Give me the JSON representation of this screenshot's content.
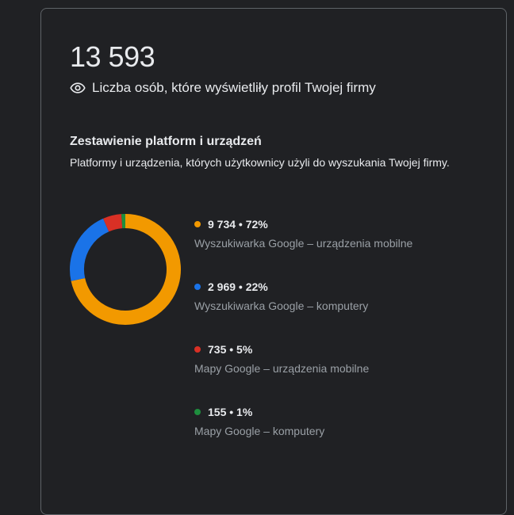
{
  "summary": {
    "total": "13 593",
    "metric_label": "Liczba osób, które wyświetliły profil Twojej firmy",
    "metric_icon": "eye-icon"
  },
  "breakdown": {
    "title": "Zestawienie platform i urządzeń",
    "subtitle": "Platformy i urządzenia, których użytkownicy użyli do wyszukania Twojej firmy."
  },
  "chart_data": {
    "type": "pie",
    "variant": "donut",
    "series": [
      {
        "name": "Wyszukiwarka Google – urządzenia mobilne",
        "value": 9734,
        "value_label": "9 734 • 72%",
        "percent": 72,
        "color": "#f29900"
      },
      {
        "name": "Wyszukiwarka Google – komputery",
        "value": 2969,
        "value_label": "2 969 • 22%",
        "percent": 22,
        "color": "#1a73e8"
      },
      {
        "name": "Mapy Google – urządzenia mobilne",
        "value": 735,
        "value_label": "735 • 5%",
        "percent": 5,
        "color": "#d93025"
      },
      {
        "name": "Mapy Google – komputery",
        "value": 155,
        "value_label": "155 • 1%",
        "percent": 1,
        "color": "#1e8e3e"
      }
    ],
    "legend": "right"
  }
}
